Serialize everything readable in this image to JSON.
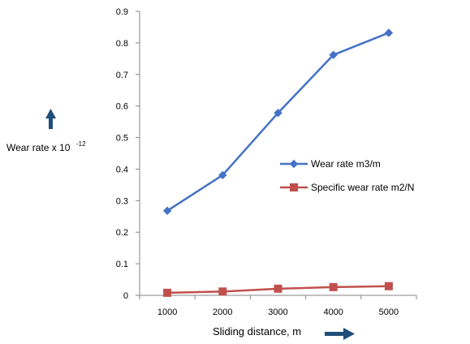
{
  "chart_data": {
    "type": "line",
    "xlabel": "Sliding distance, m",
    "ylabel_text": "Wear rate x 10",
    "ylabel_exponent": "-12",
    "categories": [
      "1000",
      "2000",
      "3000",
      "4000",
      "5000"
    ],
    "ylim": [
      0,
      0.9
    ],
    "yticks": [
      "0",
      "0.1",
      "0.2",
      "0.3",
      "0.4",
      "0.5",
      "0.6",
      "0.7",
      "0.8",
      "0.9"
    ],
    "grid": false,
    "legend_position": "right",
    "series": [
      {
        "name": "Wear rate m3/m",
        "marker": "diamond",
        "color": "#4472C4",
        "values": [
          0.268,
          0.381,
          0.578,
          0.762,
          0.832
        ]
      },
      {
        "name": "Specific wear rate  m2/N",
        "marker": "square",
        "color": "#C0504D",
        "values": [
          0.008,
          0.012,
          0.021,
          0.026,
          0.029
        ]
      }
    ],
    "arrow_color": "#1F4E79"
  }
}
